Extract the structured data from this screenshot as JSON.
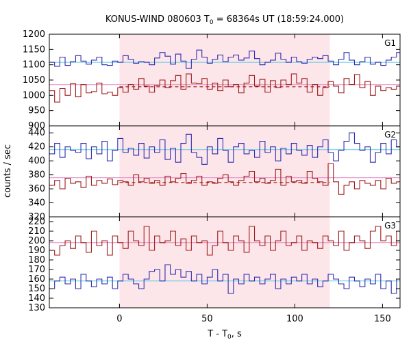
{
  "chart_data": {
    "type": "line",
    "title": "KONUS-WIND 080603 T",
    "title_sub": "0",
    "title_rest": " = 68364s UT (18:59:24.000)",
    "xlabel": "T - T",
    "xlabel_sub": "0",
    "xlabel_rest": ", s",
    "ylabel": "counts / sec",
    "xlim": [
      -40,
      160
    ],
    "xticks": [
      0,
      50,
      100,
      150
    ],
    "highlight_interval": [
      0,
      120
    ],
    "colors": {
      "upper_series": "#2b2bb0",
      "lower_series": "#9e1a1a",
      "upper_bg_line": "#5bc8e8",
      "lower_bg_line": "#e58cc6",
      "dashed_bg_line": "#8a0000",
      "highlight": "#fde6e9"
    },
    "panels": [
      {
        "label": "G1",
        "ylim": [
          900,
          1200
        ],
        "yticks": [
          900,
          950,
          1000,
          1050,
          1100,
          1150,
          1200
        ],
        "bin_width": 3,
        "bg_lines": [
          {
            "series": "upper",
            "value": 1108,
            "style": "solid"
          },
          {
            "series": "lower",
            "value": 1035,
            "style": "solid"
          },
          {
            "series": "lower",
            "value": 1028,
            "style": "dashed",
            "range": [
              0,
              120
            ]
          }
        ],
        "series": [
          {
            "role": "upper",
            "values": [
              1108,
              1095,
              1125,
              1098,
              1110,
              1130,
              1112,
              1102,
              1115,
              1125,
              1100,
              1098,
              1112,
              1108,
              1130,
              1118,
              1105,
              1110,
              1108,
              1100,
              1122,
              1140,
              1128,
              1102,
              1135,
              1112,
              1088,
              1118,
              1148,
              1125,
              1105,
              1118,
              1132,
              1110,
              1125,
              1132,
              1115,
              1122,
              1145,
              1120,
              1100,
              1108,
              1115,
              1138,
              1118,
              1108,
              1125,
              1110,
              1105,
              1118,
              1125,
              1120,
              1130,
              1112,
              1100,
              1118,
              1140,
              1115,
              1100,
              1110,
              1125,
              1102,
              1108,
              1098,
              1115,
              1125,
              1140,
              1172,
              1145,
              1155
            ]
          },
          {
            "role": "lower",
            "values": [
              1015,
              978,
              1022,
              1000,
              1038,
              995,
              1035,
              1008,
              1012,
              1040,
              1005,
              1010,
              1000,
              1025,
              1010,
              1035,
              1020,
              1055,
              1030,
              1010,
              1032,
              1050,
              1025,
              1048,
              1065,
              1020,
              1070,
              1040,
              1038,
              1055,
              1020,
              1040,
              1015,
              1050,
              1028,
              1035,
              1008,
              1040,
              1065,
              1030,
              1052,
              1010,
              1048,
              1025,
              1050,
              1035,
              1070,
              1040,
              1055,
              1010,
              1035,
              1000,
              1025,
              1045,
              1030,
              1008,
              1055,
              1035,
              1068,
              1025,
              1045,
              1000,
              1030,
              1015,
              1025,
              1020,
              1030,
              1025,
              1018,
              1030
            ]
          }
        ]
      },
      {
        "label": "G2",
        "ylim": [
          320,
          450
        ],
        "yticks": [
          320,
          340,
          360,
          380,
          400,
          420,
          440
        ],
        "bin_width": 3,
        "bg_lines": [
          {
            "series": "upper",
            "value": 416,
            "style": "solid"
          },
          {
            "series": "lower",
            "value": 376,
            "style": "solid"
          },
          {
            "series": "lower",
            "value": 369,
            "style": "dashed",
            "range": [
              0,
              120
            ]
          }
        ],
        "series": [
          {
            "role": "upper",
            "values": [
              410,
              425,
              405,
              420,
              415,
              412,
              425,
              403,
              420,
              410,
              428,
              400,
              415,
              432,
              412,
              418,
              408,
              425,
              404,
              420,
              412,
              430,
              402,
              418,
              398,
              425,
              438,
              412,
              405,
              395,
              420,
              410,
              432,
              415,
              398,
              420,
              425,
              410,
              415,
              405,
              428,
              412,
              420,
              400,
              418,
              410,
              425,
              415,
              408,
              422,
              405,
              420,
              430,
              412,
              400,
              415,
              428,
              440,
              425,
              415,
              420,
              398,
              412,
              425,
              410,
              430,
              420,
              400,
              418,
              410
            ]
          },
          {
            "role": "lower",
            "values": [
              365,
              372,
              360,
              375,
              368,
              370,
              362,
              378,
              365,
              372,
              368,
              374,
              366,
              372,
              370,
              365,
              380,
              370,
              375,
              368,
              372,
              365,
              378,
              370,
              375,
              382,
              368,
              372,
              378,
              365,
              370,
              368,
              375,
              380,
              370,
              365,
              372,
              378,
              385,
              370,
              375,
              368,
              372,
              388,
              365,
              378,
              370,
              372,
              368,
              385,
              375,
              370,
              365,
              396,
              370,
              352,
              365,
              370,
              360,
              372,
              368,
              365,
              372,
              360,
              375,
              368,
              370,
              362,
              368,
              372
            ]
          }
        ]
      },
      {
        "label": "G3",
        "ylim": [
          130,
          225
        ],
        "yticks": [
          130,
          140,
          150,
          160,
          170,
          180,
          190,
          200,
          210,
          220
        ],
        "bin_width": 3,
        "bg_lines": [
          {
            "series": "upper",
            "value": 158,
            "style": "solid"
          },
          {
            "series": "lower",
            "value": 198,
            "style": "solid"
          }
        ],
        "series": [
          {
            "role": "upper",
            "values": [
              150,
              158,
              162,
              155,
              160,
              150,
              165,
              158,
              152,
              160,
              155,
              162,
              150,
              158,
              165,
              160,
              155,
              150,
              160,
              168,
              170,
              158,
              175,
              165,
              170,
              162,
              168,
              158,
              165,
              155,
              162,
              170,
              158,
              165,
              145,
              160,
              155,
              165,
              158,
              162,
              155,
              160,
              165,
              150,
              160,
              155,
              162,
              158,
              165,
              155,
              160,
              152,
              158,
              165,
              160,
              155,
              150,
              162,
              158,
              152,
              160,
              155,
              165,
              150,
              158,
              145,
              160,
              155,
              162,
              158
            ]
          },
          {
            "role": "lower",
            "values": [
              190,
              185,
              195,
              200,
              192,
              205,
              198,
              188,
              210,
              195,
              200,
              185,
              205,
              198,
              192,
              210,
              200,
              195,
              215,
              190,
              205,
              198,
              200,
              210,
              195,
              202,
              190,
              205,
              198,
              200,
              185,
              195,
              210,
              198,
              190,
              205,
              200,
              188,
              215,
              200,
              195,
              205,
              190,
              200,
              210,
              195,
              198,
              205,
              190,
              200,
              198,
              192,
              205,
              200,
              195,
              210,
              190,
              198,
              205,
              200,
              192,
              210,
              215,
              200,
              205,
              195,
              210,
              220,
              198,
              210
            ]
          }
        ]
      }
    ]
  }
}
